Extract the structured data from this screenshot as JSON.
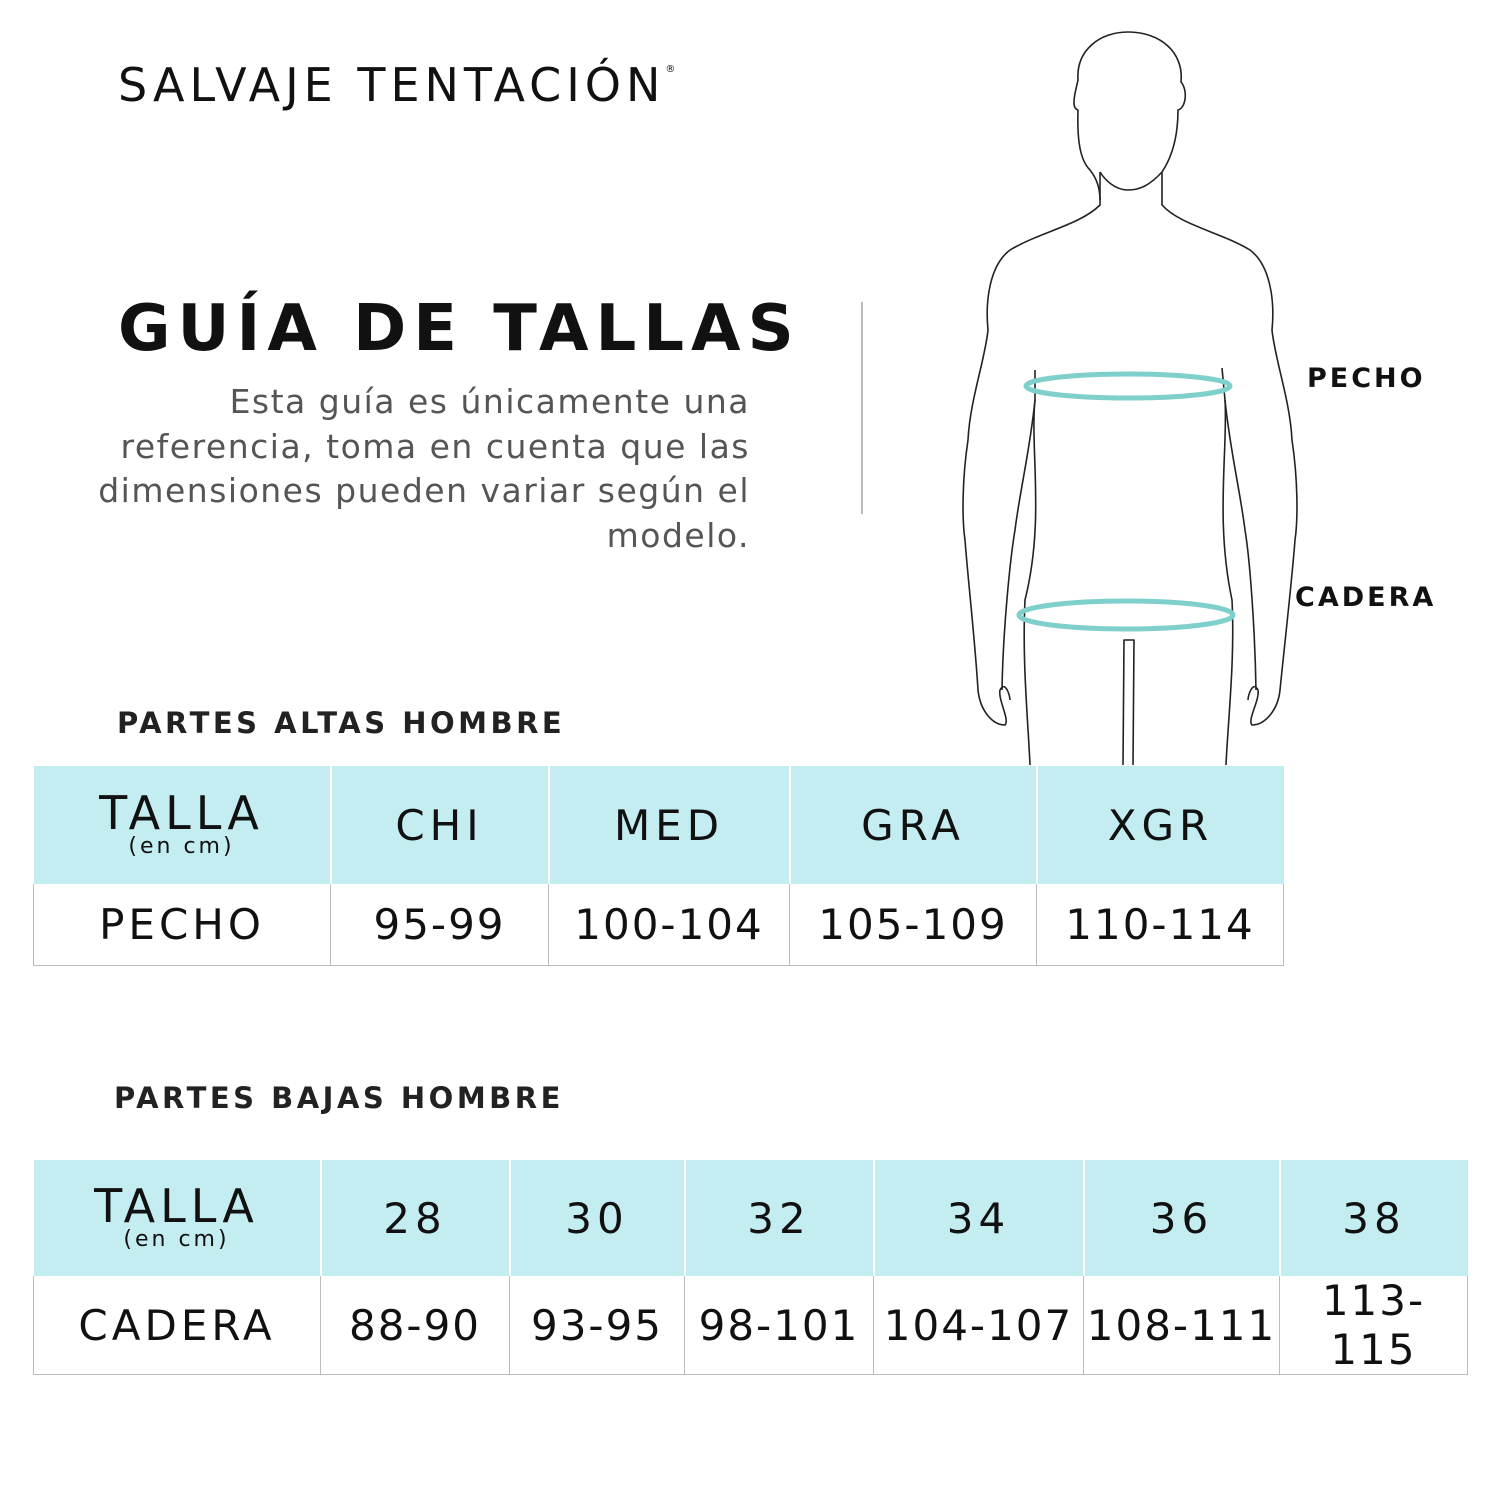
{
  "brand": {
    "name": "SALVAJE TENTACIÓN",
    "mark": "®"
  },
  "header": {
    "title": "GUÍA DE TALLAS",
    "description": "Esta guía es únicamente una referencia, toma en cuenta que las dimensiones pueden variar según el modelo."
  },
  "figure": {
    "labels": {
      "chest": "PECHO",
      "hip": "CADERA"
    },
    "ring_color": "#7fd0cc",
    "icon": "male-body-outline"
  },
  "colors": {
    "header_bg": "#c4edf2",
    "border": "#bbbbbb"
  },
  "tops": {
    "section_title": "PARTES ALTAS HOMBRE",
    "header_label": "TALLA",
    "header_unit": "(en cm)",
    "sizes": [
      "CHI",
      "MED",
      "GRA",
      "XGR"
    ],
    "row_label": "PECHO",
    "values": [
      "95-99",
      "100-104",
      "105-109",
      "110-114"
    ]
  },
  "bottoms": {
    "section_title": "PARTES BAJAS HOMBRE",
    "header_label": "TALLA",
    "header_unit": "(en cm)",
    "sizes": [
      "28",
      "30",
      "32",
      "34",
      "36",
      "38"
    ],
    "row_label": "CADERA",
    "values": [
      "88-90",
      "93-95",
      "98-101",
      "104-107",
      "108-111",
      "113-115"
    ]
  }
}
